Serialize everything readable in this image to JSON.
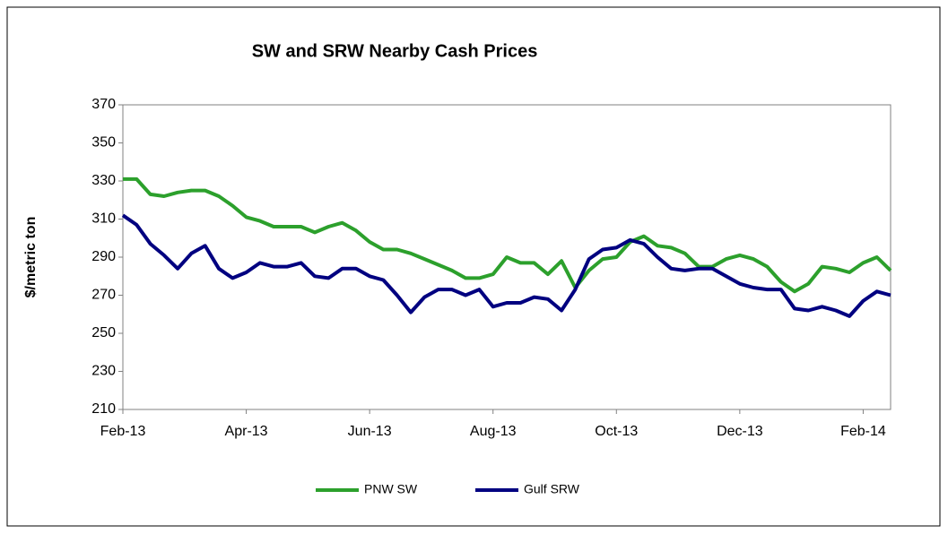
{
  "chart_data": {
    "type": "line",
    "title": "SW and SRW Nearby Cash Prices",
    "y_label": "$/metric ton",
    "categories": [
      "Feb-13",
      null,
      null,
      null,
      null,
      null,
      null,
      null,
      null,
      "Apr-13",
      null,
      null,
      null,
      null,
      null,
      null,
      null,
      null,
      "Jun-13",
      null,
      null,
      null,
      null,
      null,
      null,
      null,
      null,
      "Aug-13",
      null,
      null,
      null,
      null,
      null,
      null,
      null,
      null,
      "Oct-13",
      null,
      null,
      null,
      null,
      null,
      null,
      null,
      null,
      "Dec-13",
      null,
      null,
      null,
      null,
      null,
      null,
      null,
      null,
      "Feb-14",
      null,
      null
    ],
    "series": [
      {
        "name": "PNW SW",
        "color": "#2ca02c",
        "values": [
          331,
          331,
          323,
          322,
          324,
          325,
          325,
          322,
          317,
          311,
          309,
          306,
          306,
          306,
          303,
          306,
          308,
          304,
          298,
          294,
          294,
          292,
          289,
          286,
          283,
          279,
          279,
          281,
          290,
          287,
          287,
          281,
          288,
          274,
          283,
          289,
          290,
          298,
          301,
          296,
          295,
          292,
          285,
          285,
          289,
          291,
          289,
          285,
          277,
          272,
          276,
          285,
          284,
          282,
          287,
          290,
          283
        ]
      },
      {
        "name": "Gulf SRW",
        "color": "#000080",
        "values": [
          312,
          307,
          297,
          291,
          284,
          292,
          296,
          284,
          279,
          282,
          287,
          285,
          285,
          287,
          280,
          279,
          284,
          284,
          280,
          278,
          270,
          261,
          269,
          273,
          273,
          270,
          273,
          264,
          266,
          266,
          269,
          268,
          262,
          273,
          289,
          294,
          295,
          299,
          297,
          290,
          284,
          283,
          284,
          284,
          280,
          276,
          274,
          273,
          273,
          263,
          262,
          264,
          262,
          259,
          267,
          272,
          270
        ]
      }
    ],
    "ylim": [
      210,
      370
    ],
    "yticks": [
      210,
      230,
      250,
      270,
      290,
      310,
      330,
      350,
      370
    ],
    "grid": false,
    "legend": "bottom"
  }
}
